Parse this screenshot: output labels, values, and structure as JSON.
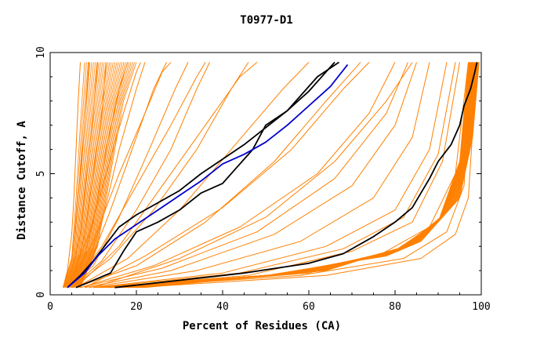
{
  "chart_data": {
    "type": "line",
    "title": "T0977-D1",
    "xlabel": "Percent of Residues (CA)",
    "ylabel": "Distance Cutoff, A",
    "xlim": [
      0,
      100
    ],
    "ylim": [
      0,
      10
    ],
    "x_ticks": [
      0,
      20,
      40,
      60,
      80,
      100
    ],
    "y_ticks": [
      0,
      5,
      10
    ],
    "grid": false,
    "legend": "none",
    "colors": {
      "background_curves": "#ff8000",
      "highlight_black": "#000000",
      "highlight_blue": "#0000cc"
    },
    "background_curves": [
      [
        [
          3,
          0.3
        ],
        [
          4,
          1
        ],
        [
          5,
          2.5
        ],
        [
          5.5,
          4
        ],
        [
          6,
          6
        ],
        [
          6.5,
          8
        ],
        [
          7,
          9.6
        ]
      ],
      [
        [
          3,
          0.3
        ],
        [
          5,
          1.5
        ],
        [
          6,
          3
        ],
        [
          7,
          5
        ],
        [
          8,
          7
        ],
        [
          9,
          9.6
        ]
      ],
      [
        [
          3,
          0.3
        ],
        [
          5,
          1
        ],
        [
          7,
          2.5
        ],
        [
          8.5,
          5
        ],
        [
          10,
          7.5
        ],
        [
          11,
          9.6
        ]
      ],
      [
        [
          3,
          0.3
        ],
        [
          6,
          1
        ],
        [
          8,
          2.5
        ],
        [
          10,
          5
        ],
        [
          12,
          7.5
        ],
        [
          13,
          9.6
        ]
      ],
      [
        [
          3,
          0.3
        ],
        [
          7,
          1
        ],
        [
          10,
          3
        ],
        [
          13,
          6
        ],
        [
          16,
          8.5
        ],
        [
          18,
          9.6
        ]
      ],
      [
        [
          4,
          0.3
        ],
        [
          8,
          1
        ],
        [
          12,
          3
        ],
        [
          16,
          6
        ],
        [
          20,
          8.5
        ],
        [
          22,
          9.6
        ]
      ],
      [
        [
          4,
          0.3
        ],
        [
          9,
          1.2
        ],
        [
          14,
          3.5
        ],
        [
          19,
          6
        ],
        [
          24,
          8.5
        ],
        [
          27,
          9.6
        ]
      ],
      [
        [
          4,
          0.3
        ],
        [
          10,
          1.2
        ],
        [
          16,
          3.2
        ],
        [
          23,
          6
        ],
        [
          29,
          8.5
        ],
        [
          32,
          9.6
        ]
      ],
      [
        [
          5,
          0.3
        ],
        [
          12,
          1.4
        ],
        [
          20,
          3.5
        ],
        [
          28,
          6
        ],
        [
          34,
          8.5
        ],
        [
          37,
          9.6
        ]
      ],
      [
        [
          5,
          0.3
        ],
        [
          14,
          1.5
        ],
        [
          24,
          3.5
        ],
        [
          34,
          6
        ],
        [
          42,
          8.5
        ],
        [
          46,
          9.6
        ]
      ],
      [
        [
          6,
          0.3
        ],
        [
          18,
          1.5
        ],
        [
          30,
          3.5
        ],
        [
          42,
          6
        ],
        [
          54,
          8.5
        ],
        [
          60,
          9.6
        ]
      ],
      [
        [
          6,
          0.3
        ],
        [
          20,
          1.2
        ],
        [
          36,
          3
        ],
        [
          52,
          5.5
        ],
        [
          64,
          8
        ],
        [
          72,
          9.6
        ]
      ],
      [
        [
          7,
          0.3
        ],
        [
          24,
          1.2
        ],
        [
          44,
          2.8
        ],
        [
          62,
          5
        ],
        [
          74,
          7.5
        ],
        [
          80,
          9.6
        ]
      ],
      [
        [
          8,
          0.3
        ],
        [
          28,
          1
        ],
        [
          52,
          2.5
        ],
        [
          70,
          4.5
        ],
        [
          80,
          7
        ],
        [
          85,
          9.6
        ]
      ],
      [
        [
          9,
          0.3
        ],
        [
          34,
          1
        ],
        [
          58,
          2.2
        ],
        [
          75,
          4
        ],
        [
          84,
          6.5
        ],
        [
          88,
          9.6
        ]
      ],
      [
        [
          10,
          0.3
        ],
        [
          40,
          0.9
        ],
        [
          64,
          2
        ],
        [
          80,
          3.5
        ],
        [
          88,
          6
        ],
        [
          92,
          9.6
        ]
      ],
      [
        [
          12,
          0.3
        ],
        [
          46,
          0.8
        ],
        [
          70,
          1.8
        ],
        [
          84,
          3
        ],
        [
          91,
          5.5
        ],
        [
          95,
          9.6
        ]
      ],
      [
        [
          14,
          0.3
        ],
        [
          52,
          0.8
        ],
        [
          76,
          1.6
        ],
        [
          88,
          2.8
        ],
        [
          94,
          5
        ],
        [
          97,
          9.6
        ]
      ],
      [
        [
          16,
          0.3
        ],
        [
          58,
          0.8
        ],
        [
          82,
          1.5
        ],
        [
          92,
          2.6
        ],
        [
          96,
          4.5
        ],
        [
          98,
          9.6
        ]
      ],
      [
        [
          20,
          0.3
        ],
        [
          64,
          0.8
        ],
        [
          86,
          1.5
        ],
        [
          94,
          2.5
        ],
        [
          97,
          4
        ],
        [
          99,
          9.6
        ]
      ],
      [
        [
          18,
          0.3
        ],
        [
          60,
          0.9
        ],
        [
          80,
          1.8
        ],
        [
          90,
          3
        ],
        [
          95,
          5.5
        ],
        [
          98,
          9.6
        ]
      ],
      [
        [
          10,
          0.3
        ],
        [
          30,
          1.5
        ],
        [
          50,
          3.2
        ],
        [
          66,
          5.5
        ],
        [
          78,
          8
        ],
        [
          84,
          9.6
        ]
      ],
      [
        [
          8,
          0.3
        ],
        [
          22,
          1.6
        ],
        [
          40,
          3.6
        ],
        [
          56,
          6
        ],
        [
          68,
          8.5
        ],
        [
          74,
          9.6
        ]
      ],
      [
        [
          6,
          0.3
        ],
        [
          16,
          2
        ],
        [
          26,
          4.5
        ],
        [
          36,
          7
        ],
        [
          44,
          9
        ],
        [
          48,
          9.6
        ]
      ],
      [
        [
          5,
          0.3
        ],
        [
          12,
          2
        ],
        [
          20,
          4.5
        ],
        [
          28,
          7
        ],
        [
          34,
          9
        ],
        [
          36,
          9.6
        ]
      ],
      [
        [
          4,
          0.3
        ],
        [
          10,
          2.2
        ],
        [
          16,
          5
        ],
        [
          22,
          7.5
        ],
        [
          26,
          9.2
        ],
        [
          28,
          9.6
        ]
      ],
      [
        [
          4,
          0.3
        ],
        [
          9,
          2.5
        ],
        [
          13,
          5
        ],
        [
          17,
          7.5
        ],
        [
          20,
          9.2
        ],
        [
          21,
          9.6
        ]
      ],
      [
        [
          7,
          0.3
        ],
        [
          26,
          1.1
        ],
        [
          48,
          2.6
        ],
        [
          66,
          4.8
        ],
        [
          78,
          7.5
        ],
        [
          83,
          9.6
        ]
      ],
      [
        [
          11,
          0.3
        ],
        [
          44,
          0.9
        ],
        [
          68,
          1.9
        ],
        [
          82,
          3.2
        ],
        [
          90,
          5.8
        ],
        [
          94,
          9.6
        ]
      ]
    ],
    "highlight_curves": [
      {
        "color": "#000000",
        "points": [
          [
            4,
            0.3
          ],
          [
            7,
            0.8
          ],
          [
            10,
            1.4
          ],
          [
            13,
            2.1
          ],
          [
            16,
            2.8
          ],
          [
            20,
            3.3
          ],
          [
            25,
            3.8
          ],
          [
            30,
            4.3
          ],
          [
            35,
            5.0
          ],
          [
            40,
            5.6
          ],
          [
            45,
            6.2
          ],
          [
            50,
            6.9
          ],
          [
            55,
            7.6
          ],
          [
            60,
            8.4
          ],
          [
            64,
            9.2
          ],
          [
            66,
            9.6
          ]
        ]
      },
      {
        "color": "#000000",
        "points": [
          [
            6,
            0.3
          ],
          [
            10,
            0.6
          ],
          [
            14,
            0.9
          ],
          [
            17,
            1.8
          ],
          [
            20,
            2.6
          ],
          [
            25,
            3.0
          ],
          [
            30,
            3.5
          ],
          [
            35,
            4.2
          ],
          [
            40,
            4.6
          ],
          [
            43,
            5.2
          ],
          [
            47,
            6.0
          ],
          [
            50,
            7.0
          ],
          [
            55,
            7.6
          ],
          [
            58,
            8.2
          ],
          [
            62,
            9.0
          ],
          [
            67,
            9.6
          ]
        ]
      },
      {
        "color": "#0000cc",
        "points": [
          [
            4,
            0.3
          ],
          [
            8,
            0.9
          ],
          [
            11,
            1.6
          ],
          [
            15,
            2.3
          ],
          [
            20,
            2.9
          ],
          [
            25,
            3.5
          ],
          [
            30,
            4.1
          ],
          [
            35,
            4.7
          ],
          [
            40,
            5.4
          ],
          [
            45,
            5.8
          ],
          [
            50,
            6.3
          ],
          [
            55,
            7.0
          ],
          [
            60,
            7.8
          ],
          [
            65,
            8.6
          ],
          [
            69,
            9.5
          ]
        ]
      },
      {
        "color": "#000000",
        "points": [
          [
            15,
            0.3
          ],
          [
            30,
            0.6
          ],
          [
            45,
            0.9
          ],
          [
            60,
            1.3
          ],
          [
            68,
            1.7
          ],
          [
            75,
            2.4
          ],
          [
            80,
            3.0
          ],
          [
            84,
            3.6
          ],
          [
            86,
            4.2
          ],
          [
            88,
            4.8
          ],
          [
            90,
            5.5
          ],
          [
            93,
            6.2
          ],
          [
            95,
            7.0
          ],
          [
            96,
            7.8
          ],
          [
            97.5,
            8.5
          ],
          [
            98.5,
            9.2
          ],
          [
            99,
            9.6
          ]
        ]
      }
    ]
  }
}
